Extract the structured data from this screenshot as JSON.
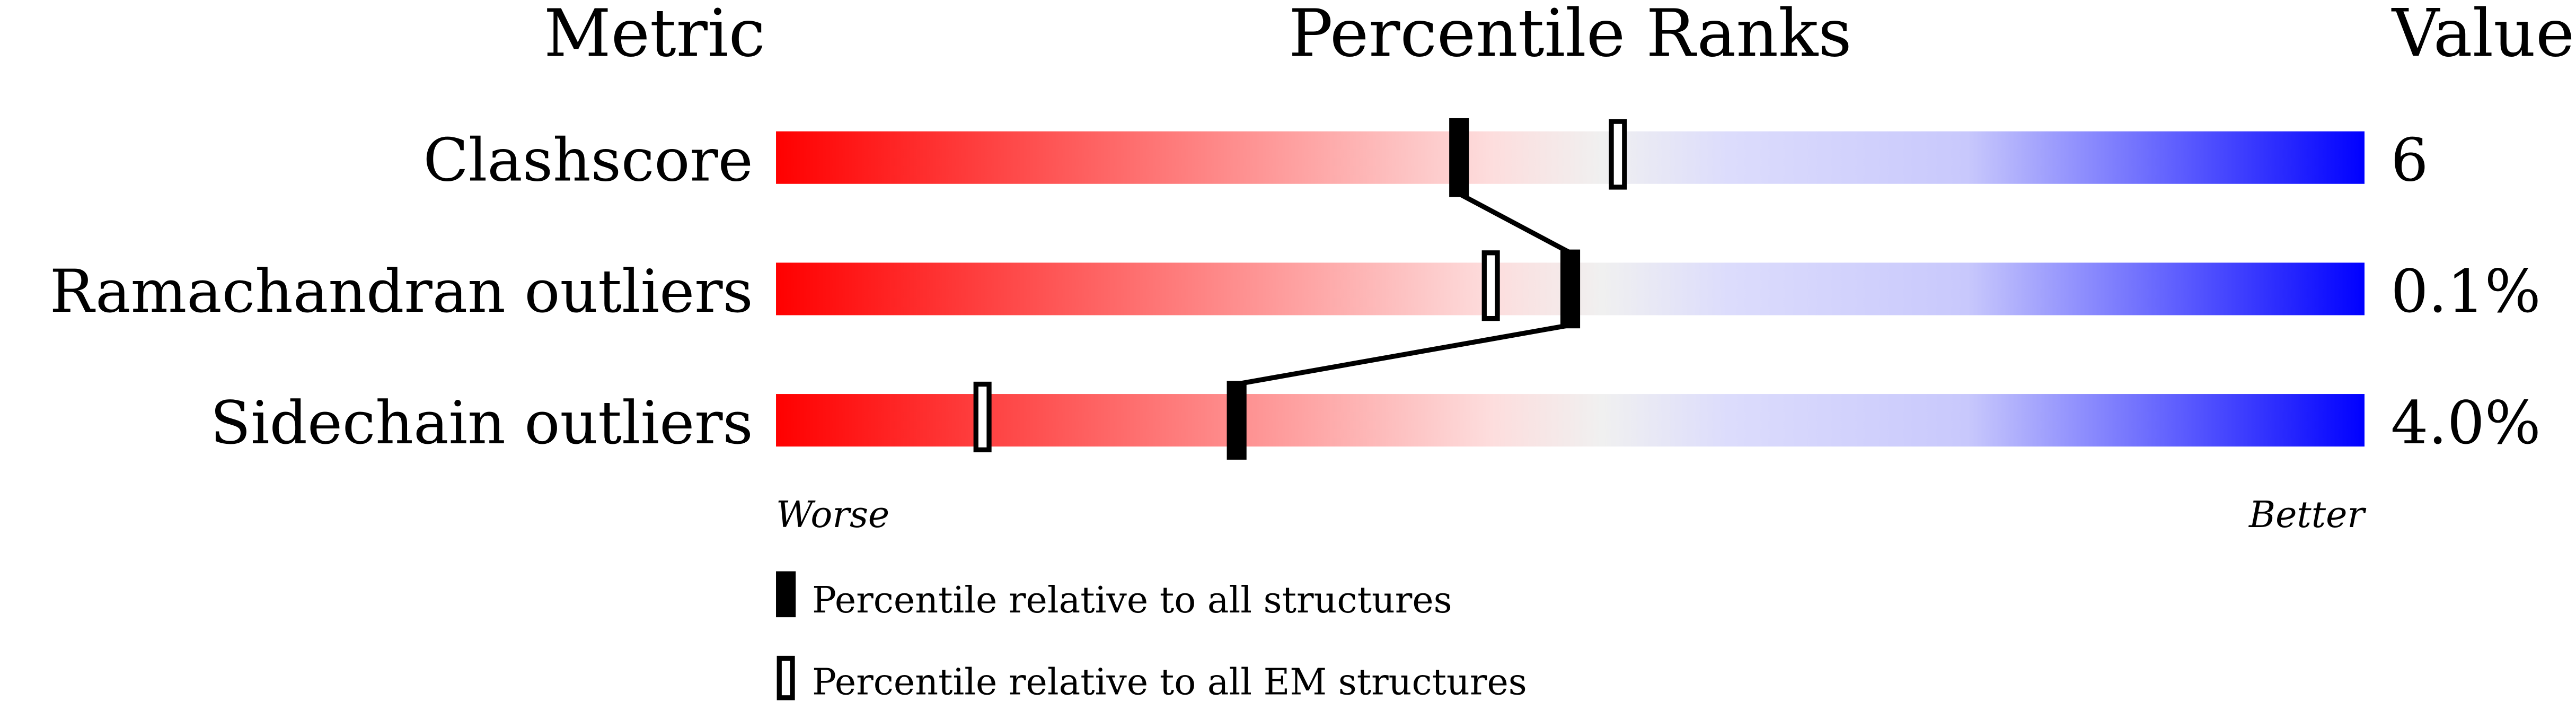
{
  "chart_data": {
    "type": "percentile-slider",
    "headers": {
      "metric": "Metric",
      "ranks": "Percentile Ranks",
      "value": "Value"
    },
    "xlim": [
      0,
      100
    ],
    "axis_labels": {
      "left": "Worse",
      "right": "Better"
    },
    "gradient_colors": [
      "#ff0000",
      "#fddddd",
      "#f0f0f0",
      "#dcdcfc",
      "#0000ff"
    ],
    "rows": [
      {
        "metric": "Clashscore",
        "value": "6",
        "percentile_all": 43,
        "percentile_em": 53
      },
      {
        "metric": "Ramachandran outliers",
        "value": "0.1%",
        "percentile_all": 50,
        "percentile_em": 45
      },
      {
        "metric": "Sidechain outliers",
        "value": "4.0%",
        "percentile_all": 29,
        "percentile_em": 13
      }
    ],
    "legend": [
      {
        "marker": "filled",
        "label": "Percentile relative to all structures"
      },
      {
        "marker": "open",
        "label": "Percentile relative to all EM structures"
      }
    ]
  }
}
